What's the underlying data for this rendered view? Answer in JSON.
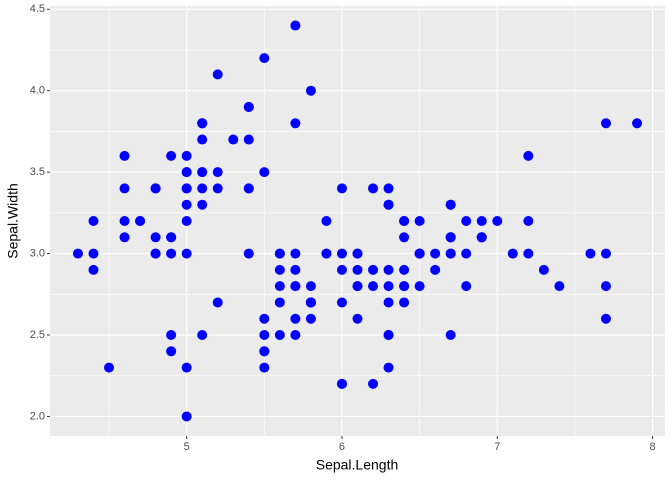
{
  "chart_data": {
    "type": "scatter",
    "x_label": "Sepal.Length",
    "y_label": "Sepal.Width",
    "color": "#0000ff",
    "grid": true,
    "xlim": [
      4.12,
      8.08
    ],
    "ylim": [
      1.88,
      4.52
    ],
    "xticks": [
      5,
      6,
      7,
      8
    ],
    "yticks": [
      {
        "value": 2.0,
        "label": "2.0"
      },
      {
        "value": 2.5,
        "label": "2.5"
      },
      {
        "value": 3.0,
        "label": "3.0"
      },
      {
        "value": 3.5,
        "label": "3.5"
      },
      {
        "value": 4.0,
        "label": "4.0"
      },
      {
        "value": 4.5,
        "label": "4.5"
      }
    ],
    "x": [
      5.1,
      4.9,
      4.7,
      4.6,
      5.0,
      5.4,
      4.6,
      5.0,
      4.4,
      4.9,
      5.4,
      4.8,
      4.8,
      4.3,
      5.8,
      5.7,
      5.4,
      5.1,
      5.7,
      5.1,
      5.4,
      5.1,
      4.6,
      5.1,
      4.8,
      5.0,
      5.0,
      5.2,
      5.2,
      4.7,
      4.8,
      5.4,
      5.2,
      5.5,
      4.9,
      5.0,
      5.5,
      4.9,
      4.4,
      5.1,
      5.0,
      4.5,
      4.4,
      5.0,
      5.1,
      4.8,
      5.1,
      4.6,
      5.3,
      5.0,
      7.0,
      6.4,
      6.9,
      5.5,
      6.5,
      5.7,
      6.3,
      4.9,
      6.6,
      5.2,
      5.0,
      5.9,
      6.0,
      6.1,
      5.6,
      6.7,
      5.6,
      5.8,
      6.2,
      5.6,
      5.9,
      6.1,
      6.3,
      6.1,
      6.4,
      6.6,
      6.8,
      6.7,
      6.0,
      5.7,
      5.5,
      5.5,
      5.8,
      6.0,
      5.4,
      6.0,
      6.7,
      6.3,
      5.6,
      5.5,
      5.5,
      6.1,
      5.8,
      5.0,
      5.6,
      5.7,
      5.7,
      6.2,
      5.1,
      5.7,
      6.3,
      5.8,
      7.1,
      6.3,
      6.5,
      7.6,
      4.9,
      7.3,
      6.7,
      7.2,
      6.5,
      6.4,
      6.8,
      5.7,
      5.8,
      6.4,
      6.5,
      7.7,
      7.7,
      6.0,
      6.9,
      5.6,
      7.7,
      6.3,
      6.7,
      7.2,
      6.2,
      6.1,
      6.4,
      7.2,
      7.4,
      7.9,
      6.4,
      6.3,
      6.1,
      7.7,
      6.3,
      6.4,
      6.0,
      6.9,
      6.7,
      6.9,
      5.8,
      6.8,
      6.7,
      6.7,
      6.3,
      6.5,
      6.2,
      5.9
    ],
    "values": [
      3.5,
      3.0,
      3.2,
      3.1,
      3.6,
      3.9,
      3.4,
      3.4,
      2.9,
      3.1,
      3.7,
      3.4,
      3.0,
      3.0,
      4.0,
      4.4,
      3.9,
      3.5,
      3.8,
      3.8,
      3.4,
      3.7,
      3.6,
      3.3,
      3.4,
      3.0,
      3.4,
      3.5,
      3.4,
      3.2,
      3.1,
      3.4,
      4.1,
      4.2,
      3.1,
      3.2,
      3.5,
      3.6,
      3.0,
      3.4,
      3.5,
      2.3,
      3.2,
      3.5,
      3.8,
      3.0,
      3.8,
      3.2,
      3.7,
      3.3,
      3.2,
      3.2,
      3.1,
      2.3,
      2.8,
      2.8,
      3.3,
      2.4,
      2.9,
      2.7,
      2.0,
      3.0,
      2.2,
      2.9,
      2.9,
      3.1,
      3.0,
      2.7,
      2.2,
      2.5,
      3.2,
      2.8,
      2.5,
      2.8,
      2.9,
      3.0,
      2.8,
      3.0,
      2.9,
      2.6,
      2.4,
      2.4,
      2.7,
      2.7,
      3.0,
      3.4,
      3.1,
      2.3,
      3.0,
      2.5,
      2.6,
      3.0,
      2.6,
      2.3,
      2.7,
      3.0,
      2.9,
      2.9,
      2.5,
      2.8,
      3.3,
      2.7,
      3.0,
      2.9,
      3.0,
      3.0,
      2.5,
      2.9,
      2.5,
      3.6,
      3.2,
      2.7,
      3.0,
      2.5,
      2.8,
      3.2,
      3.0,
      3.8,
      2.6,
      2.2,
      3.2,
      2.8,
      2.8,
      2.7,
      3.3,
      3.2,
      2.8,
      3.0,
      2.8,
      3.0,
      2.8,
      3.8,
      2.8,
      2.8,
      2.6,
      3.0,
      3.4,
      3.1,
      3.0,
      3.1,
      3.1,
      3.1,
      2.7,
      3.2,
      3.3,
      3.0,
      2.5,
      3.0,
      3.4,
      3.0
    ]
  }
}
